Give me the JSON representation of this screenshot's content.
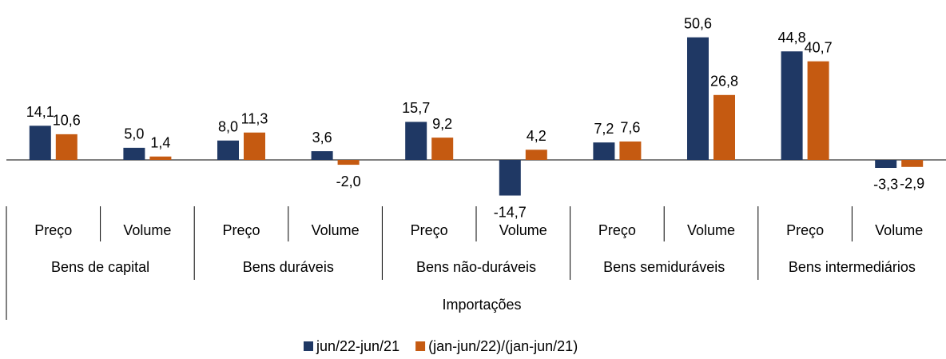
{
  "chart_data": {
    "type": "bar",
    "categories": [
      "Preço",
      "Volume",
      "Preço",
      "Volume",
      "Preço",
      "Volume",
      "Preço",
      "Volume",
      "Preço",
      "Volume"
    ],
    "group_labels": [
      "Bens de capital",
      "Bens duráveis",
      "Bens não-duráveis",
      "Bens semiduráveis",
      "Bens intermediários"
    ],
    "outer_label": "Importações",
    "series": [
      {
        "name": "jun/22-jun/21",
        "color": "#1f3864",
        "values": [
          14.1,
          5.0,
          8.0,
          3.6,
          15.7,
          -14.7,
          7.2,
          50.6,
          44.8,
          -3.3
        ],
        "value_labels": [
          "14,1",
          "5,0",
          "8,0",
          "3,6",
          "15,7",
          "-14,7",
          "7,2",
          "50,6",
          "44,8",
          "-3,3"
        ]
      },
      {
        "name": "(jan-jun/22)/(jan-jun/21)",
        "color": "#c55a11",
        "values": [
          10.6,
          1.4,
          11.3,
          -2.0,
          9.2,
          4.2,
          7.6,
          26.8,
          40.7,
          -2.9
        ],
        "value_labels": [
          "10,6",
          "1,4",
          "11,3",
          "-2,0",
          "9,2",
          "4,2",
          "7,6",
          "26,8",
          "40,7",
          "-2,9"
        ]
      }
    ],
    "legend": "bottom"
  }
}
